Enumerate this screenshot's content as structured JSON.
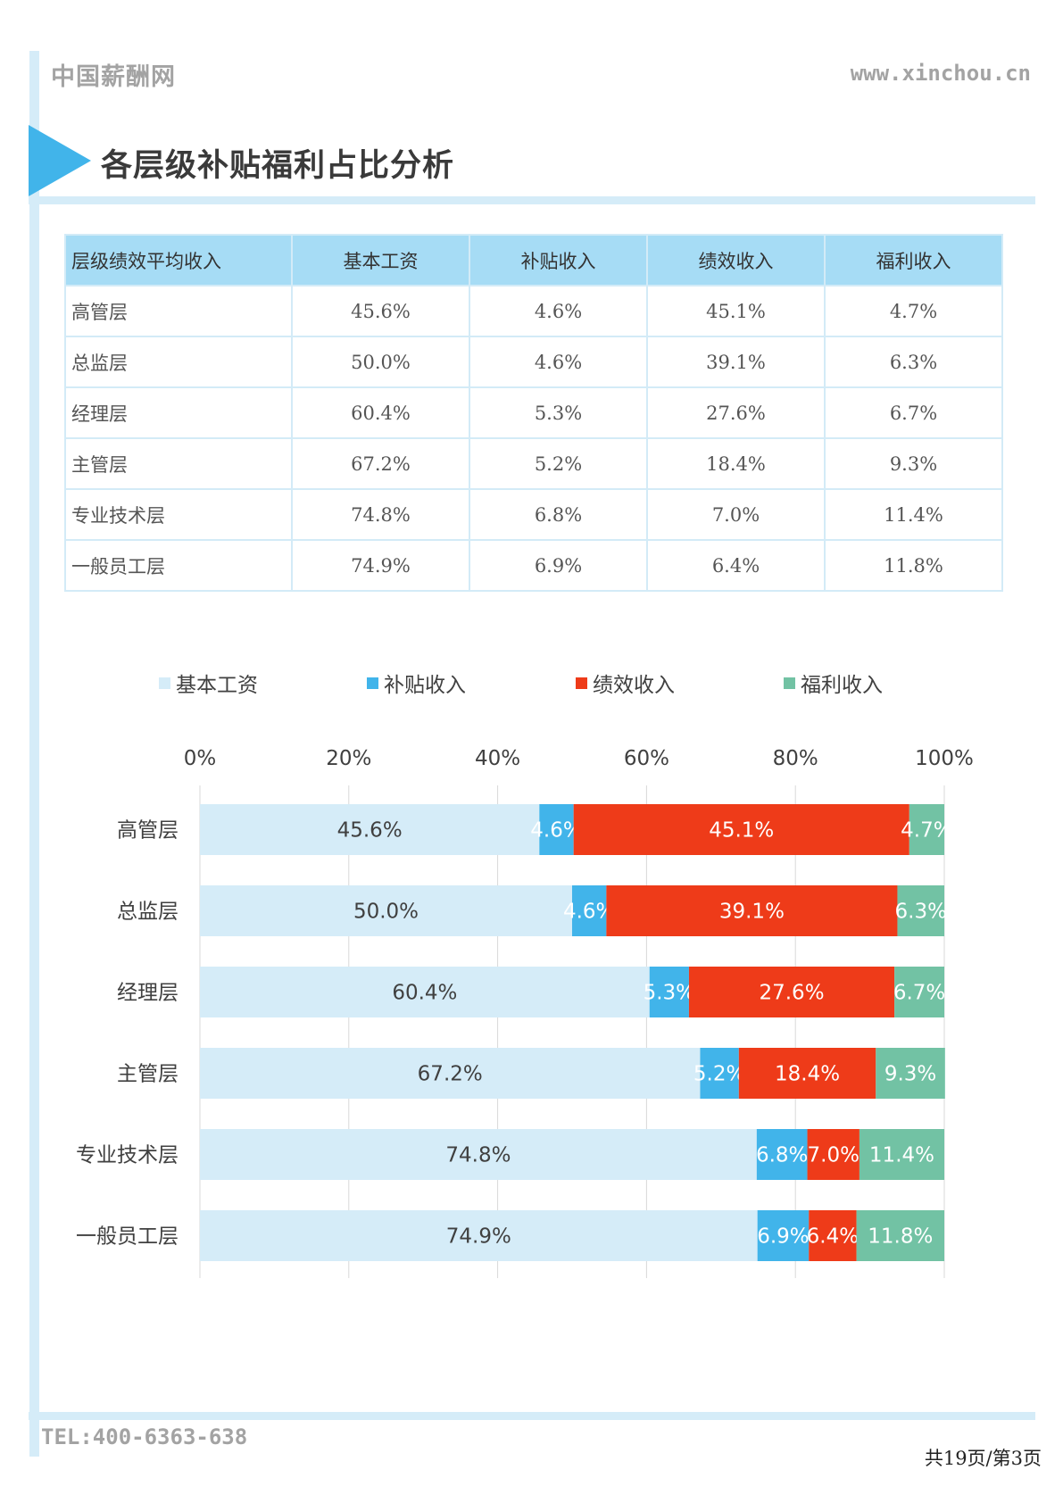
{
  "header": {
    "brand": "中国薪酬网",
    "site": "www.xinchou.cn"
  },
  "section_title": "各层级补贴福利占比分析",
  "table": {
    "columns": [
      "层级绩效平均收入",
      "基本工资",
      "补贴收入",
      "绩效收入",
      "福利收入"
    ],
    "rows": [
      [
        "高管层",
        "45.6%",
        "4.6%",
        "45.1%",
        "4.7%"
      ],
      [
        "总监层",
        "50.0%",
        "4.6%",
        "39.1%",
        "6.3%"
      ],
      [
        "经理层",
        "60.4%",
        "5.3%",
        "27.6%",
        "6.7%"
      ],
      [
        "主管层",
        "67.2%",
        "5.2%",
        "18.4%",
        "9.3%"
      ],
      [
        "专业技术层",
        "74.8%",
        "6.8%",
        "7.0%",
        "11.4%"
      ],
      [
        "一般员工层",
        "74.9%",
        "6.9%",
        "6.4%",
        "11.8%"
      ]
    ]
  },
  "chart_data": {
    "type": "bar",
    "orientation": "horizontal",
    "stacked": true,
    "categories": [
      "高管层",
      "总监层",
      "经理层",
      "主管层",
      "专业技术层",
      "一般员工层"
    ],
    "series": [
      {
        "name": "基本工资",
        "values": [
          45.6,
          50.0,
          60.4,
          67.2,
          74.8,
          74.9
        ],
        "color": "#d5ecf8",
        "label_color": "#404040"
      },
      {
        "name": "补贴收入",
        "values": [
          4.6,
          4.6,
          5.3,
          5.2,
          6.8,
          6.9
        ],
        "color": "#41b4ea",
        "label_color": "#ffffff"
      },
      {
        "name": "绩效收入",
        "values": [
          45.1,
          39.1,
          27.6,
          18.4,
          7.0,
          6.4
        ],
        "color": "#ee3b19",
        "label_color": "#ffffff"
      },
      {
        "name": "福利收入",
        "values": [
          4.7,
          6.3,
          6.7,
          9.3,
          11.4,
          11.8
        ],
        "color": "#72c2a4",
        "label_color": "#ffffff"
      }
    ],
    "x_ticks": [
      "0%",
      "20%",
      "40%",
      "60%",
      "80%",
      "100%"
    ],
    "xlim": [
      0,
      100
    ],
    "x_axis_position": "top",
    "legend": "top",
    "grid": true
  },
  "footer": {
    "tel": "TEL:400-6363-638",
    "page": "共19页/第3页"
  }
}
